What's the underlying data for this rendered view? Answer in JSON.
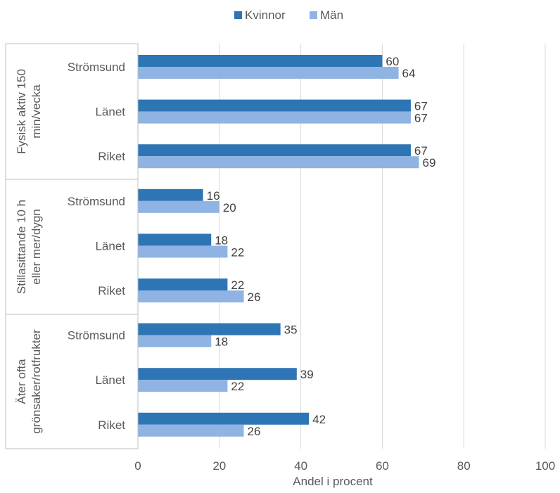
{
  "chart_data": {
    "type": "bar",
    "orientation": "horizontal",
    "xlabel": "Andel i procent",
    "xlim": [
      0,
      100
    ],
    "xticks": [
      0,
      20,
      40,
      60,
      80,
      100
    ],
    "grid": true,
    "legend_position": "top",
    "series": [
      {
        "name": "Kvinnor",
        "color": "#2e75b6",
        "values": [
          60,
          67,
          67,
          16,
          18,
          22,
          35,
          39,
          42
        ]
      },
      {
        "name": "Män",
        "color": "#8fb4e3",
        "values": [
          64,
          67,
          69,
          20,
          22,
          26,
          18,
          22,
          26
        ]
      }
    ],
    "groups": [
      {
        "label_lines": [
          "Fysisk aktiv 150",
          "min/vecka"
        ],
        "categories": [
          "Strömsund",
          "Länet",
          "Riket"
        ]
      },
      {
        "label_lines": [
          "Stillasittande 10 h",
          "eller mer/dygn"
        ],
        "categories": [
          "Strömsund",
          "Länet",
          "Riket"
        ]
      },
      {
        "label_lines": [
          "Äter ofta",
          "grönsaker/rotfrukter"
        ],
        "categories": [
          "Strömsund",
          "Länet",
          "Riket"
        ]
      }
    ]
  }
}
